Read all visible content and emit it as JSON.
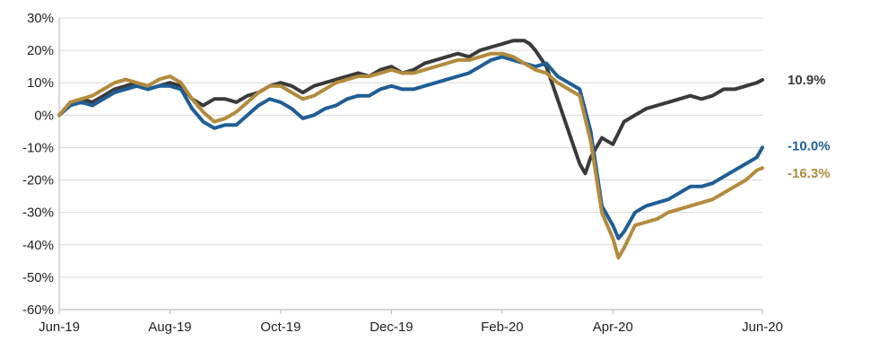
{
  "chart_data": {
    "type": "line",
    "x_ticks": [
      "Jun-19",
      "Aug-19",
      "Oct-19",
      "Dec-19",
      "Feb-20",
      "Apr-20",
      "Jun-20"
    ],
    "y_ticks": [
      "30%",
      "20%",
      "10%",
      "0%",
      "-10%",
      "-20%",
      "-30%",
      "-40%",
      "-50%",
      "-60%"
    ],
    "ylim": [
      -60,
      30
    ],
    "grid": "horizontal",
    "series": [
      {
        "color": "#3a3a3a",
        "end_label": "10.9%",
        "points": [
          [
            0,
            0
          ],
          [
            0.2,
            3
          ],
          [
            0.4,
            5
          ],
          [
            0.6,
            4
          ],
          [
            0.8,
            6
          ],
          [
            1.0,
            8
          ],
          [
            1.2,
            9
          ],
          [
            1.4,
            10
          ],
          [
            1.6,
            8
          ],
          [
            1.8,
            9
          ],
          [
            2.0,
            10
          ],
          [
            2.2,
            9
          ],
          [
            2.4,
            5
          ],
          [
            2.6,
            3
          ],
          [
            2.8,
            5
          ],
          [
            3.0,
            5
          ],
          [
            3.2,
            4
          ],
          [
            3.4,
            6
          ],
          [
            3.6,
            7
          ],
          [
            3.8,
            9
          ],
          [
            4.0,
            10
          ],
          [
            4.2,
            9
          ],
          [
            4.4,
            7
          ],
          [
            4.6,
            9
          ],
          [
            4.8,
            10
          ],
          [
            5.0,
            11
          ],
          [
            5.2,
            12
          ],
          [
            5.4,
            13
          ],
          [
            5.6,
            12
          ],
          [
            5.8,
            14
          ],
          [
            6.0,
            15
          ],
          [
            6.2,
            13
          ],
          [
            6.4,
            14
          ],
          [
            6.6,
            16
          ],
          [
            6.8,
            17
          ],
          [
            7.0,
            18
          ],
          [
            7.2,
            19
          ],
          [
            7.4,
            18
          ],
          [
            7.6,
            20
          ],
          [
            7.8,
            21
          ],
          [
            8.0,
            22
          ],
          [
            8.2,
            23
          ],
          [
            8.4,
            23
          ],
          [
            8.5,
            22
          ],
          [
            8.6,
            20
          ],
          [
            8.8,
            15
          ],
          [
            9.0,
            5
          ],
          [
            9.2,
            -5
          ],
          [
            9.4,
            -15
          ],
          [
            9.5,
            -18
          ],
          [
            9.6,
            -13
          ],
          [
            9.8,
            -7
          ],
          [
            10.0,
            -9
          ],
          [
            10.2,
            -2
          ],
          [
            10.4,
            0
          ],
          [
            10.6,
            2
          ],
          [
            10.8,
            3
          ],
          [
            11.0,
            4
          ],
          [
            11.2,
            5
          ],
          [
            11.4,
            6
          ],
          [
            11.6,
            5
          ],
          [
            11.8,
            6
          ],
          [
            12.0,
            8
          ],
          [
            12.2,
            8
          ],
          [
            12.4,
            9
          ],
          [
            12.6,
            10
          ],
          [
            12.7,
            10.9
          ]
        ]
      },
      {
        "color": "#1f5e96",
        "end_label": "-10.0%",
        "points": [
          [
            0,
            0
          ],
          [
            0.2,
            3
          ],
          [
            0.4,
            4
          ],
          [
            0.6,
            3
          ],
          [
            0.8,
            5
          ],
          [
            1.0,
            7
          ],
          [
            1.2,
            8
          ],
          [
            1.4,
            9
          ],
          [
            1.6,
            8
          ],
          [
            1.8,
            9
          ],
          [
            2.0,
            9
          ],
          [
            2.2,
            8
          ],
          [
            2.4,
            2
          ],
          [
            2.6,
            -2
          ],
          [
            2.8,
            -4
          ],
          [
            3.0,
            -3
          ],
          [
            3.2,
            -3
          ],
          [
            3.4,
            0
          ],
          [
            3.6,
            3
          ],
          [
            3.8,
            5
          ],
          [
            4.0,
            4
          ],
          [
            4.2,
            2
          ],
          [
            4.4,
            -1
          ],
          [
            4.6,
            0
          ],
          [
            4.8,
            2
          ],
          [
            5.0,
            3
          ],
          [
            5.2,
            5
          ],
          [
            5.4,
            6
          ],
          [
            5.6,
            6
          ],
          [
            5.8,
            8
          ],
          [
            6.0,
            9
          ],
          [
            6.2,
            8
          ],
          [
            6.4,
            8
          ],
          [
            6.6,
            9
          ],
          [
            6.8,
            10
          ],
          [
            7.0,
            11
          ],
          [
            7.2,
            12
          ],
          [
            7.4,
            13
          ],
          [
            7.6,
            15
          ],
          [
            7.8,
            17
          ],
          [
            8.0,
            18
          ],
          [
            8.2,
            17
          ],
          [
            8.4,
            16
          ],
          [
            8.6,
            15
          ],
          [
            8.8,
            16
          ],
          [
            9.0,
            12
          ],
          [
            9.2,
            10
          ],
          [
            9.4,
            8
          ],
          [
            9.6,
            -5
          ],
          [
            9.8,
            -28
          ],
          [
            10.0,
            -34
          ],
          [
            10.1,
            -38
          ],
          [
            10.2,
            -36
          ],
          [
            10.4,
            -30
          ],
          [
            10.6,
            -28
          ],
          [
            10.8,
            -27
          ],
          [
            11.0,
            -26
          ],
          [
            11.2,
            -24
          ],
          [
            11.4,
            -22
          ],
          [
            11.6,
            -22
          ],
          [
            11.8,
            -21
          ],
          [
            12.0,
            -19
          ],
          [
            12.2,
            -17
          ],
          [
            12.4,
            -15
          ],
          [
            12.6,
            -13
          ],
          [
            12.7,
            -10
          ]
        ]
      },
      {
        "color": "#b28b3d",
        "end_label": "-16.3%",
        "points": [
          [
            0,
            0
          ],
          [
            0.2,
            4
          ],
          [
            0.4,
            5
          ],
          [
            0.6,
            6
          ],
          [
            0.8,
            8
          ],
          [
            1.0,
            10
          ],
          [
            1.2,
            11
          ],
          [
            1.4,
            10
          ],
          [
            1.6,
            9
          ],
          [
            1.8,
            11
          ],
          [
            2.0,
            12
          ],
          [
            2.2,
            10
          ],
          [
            2.4,
            5
          ],
          [
            2.6,
            1
          ],
          [
            2.8,
            -2
          ],
          [
            3.0,
            -1
          ],
          [
            3.2,
            1
          ],
          [
            3.4,
            4
          ],
          [
            3.6,
            7
          ],
          [
            3.8,
            9
          ],
          [
            4.0,
            9
          ],
          [
            4.2,
            7
          ],
          [
            4.4,
            5
          ],
          [
            4.6,
            6
          ],
          [
            4.8,
            8
          ],
          [
            5.0,
            10
          ],
          [
            5.2,
            11
          ],
          [
            5.4,
            12
          ],
          [
            5.6,
            12
          ],
          [
            5.8,
            13
          ],
          [
            6.0,
            14
          ],
          [
            6.2,
            13
          ],
          [
            6.4,
            13
          ],
          [
            6.6,
            14
          ],
          [
            6.8,
            15
          ],
          [
            7.0,
            16
          ],
          [
            7.2,
            17
          ],
          [
            7.4,
            17
          ],
          [
            7.6,
            18
          ],
          [
            7.8,
            19
          ],
          [
            8.0,
            19
          ],
          [
            8.2,
            18
          ],
          [
            8.4,
            16
          ],
          [
            8.6,
            14
          ],
          [
            8.8,
            13
          ],
          [
            9.0,
            10
          ],
          [
            9.2,
            8
          ],
          [
            9.4,
            6
          ],
          [
            9.6,
            -8
          ],
          [
            9.8,
            -30
          ],
          [
            10.0,
            -38
          ],
          [
            10.1,
            -44
          ],
          [
            10.2,
            -41
          ],
          [
            10.4,
            -34
          ],
          [
            10.6,
            -33
          ],
          [
            10.8,
            -32
          ],
          [
            11.0,
            -30
          ],
          [
            11.2,
            -29
          ],
          [
            11.4,
            -28
          ],
          [
            11.6,
            -27
          ],
          [
            11.8,
            -26
          ],
          [
            12.0,
            -24
          ],
          [
            12.2,
            -22
          ],
          [
            12.4,
            -20
          ],
          [
            12.6,
            -17
          ],
          [
            12.7,
            -16.3
          ]
        ]
      }
    ]
  }
}
